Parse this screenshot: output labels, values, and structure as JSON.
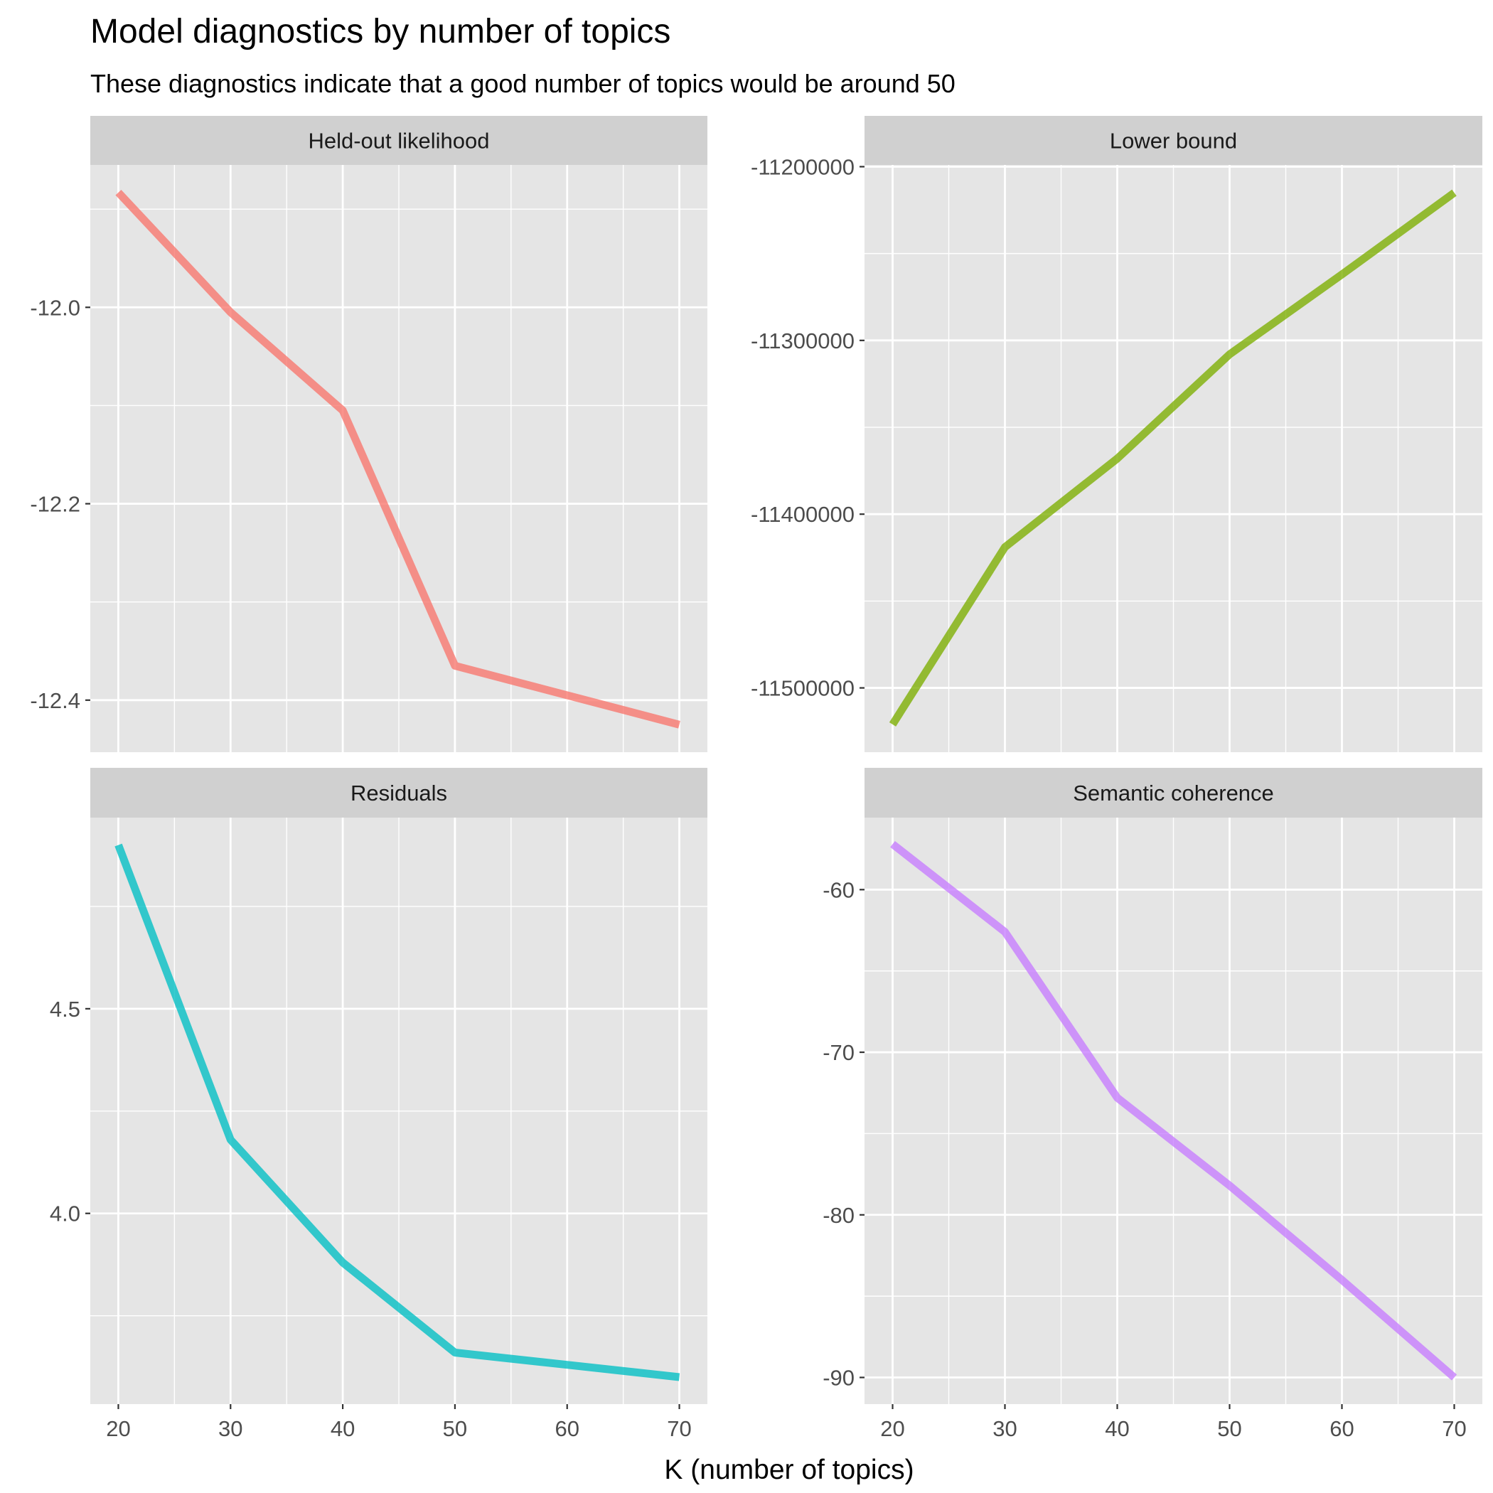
{
  "title": "Model diagnostics by number of topics",
  "subtitle": "These diagnostics indicate that a good number of topics would be around 50",
  "xlabel": "K (number of topics)",
  "ylabel": "",
  "panel_background": "#e5e5e5",
  "strip_background": "#d0d0d0",
  "gridline_color": "#ffffff",
  "chart_data": [
    {
      "type": "line",
      "panel": "Held-out likelihood",
      "color": "#F8766D",
      "x": [
        20,
        30,
        40,
        50,
        60,
        70
      ],
      "y": [
        -11.883,
        -12.005,
        -12.105,
        -12.365,
        -12.395,
        -12.425
      ],
      "xlim": [
        17.5,
        72.5
      ],
      "ylim": [
        -12.453,
        -11.855
      ],
      "x_ticks": [
        20,
        30,
        40,
        50,
        60,
        70
      ],
      "x_tick_labels": [
        "20",
        "30",
        "40",
        "50",
        "60",
        "70"
      ],
      "y_ticks": [
        -12.4,
        -12.2,
        -12.0
      ],
      "y_tick_labels": [
        "-12.4",
        "-12.2",
        "-12.0"
      ],
      "grid": true
    },
    {
      "type": "line",
      "panel": "Lower bound",
      "color": "#7CAE00",
      "x": [
        20,
        30,
        40,
        50,
        60,
        70
      ],
      "y": [
        -11521000,
        -11419000,
        -11368000,
        -11308000,
        -11262000,
        -11215000
      ],
      "xlim": [
        17.5,
        72.5
      ],
      "ylim": [
        -11537000,
        -11199000
      ],
      "x_ticks": [
        20,
        30,
        40,
        50,
        60,
        70
      ],
      "x_tick_labels": [
        "20",
        "30",
        "40",
        "50",
        "60",
        "70"
      ],
      "y_ticks": [
        -11500000,
        -11400000,
        -11300000,
        -11200000
      ],
      "y_tick_labels": [
        "-11500000",
        "-11400000",
        "-11300000",
        "-11200000"
      ],
      "grid": true
    },
    {
      "type": "line",
      "panel": "Residuals",
      "color": "#00BFC4",
      "x": [
        20,
        30,
        40,
        50,
        60,
        70
      ],
      "y": [
        4.9,
        4.18,
        3.88,
        3.66,
        3.63,
        3.6
      ],
      "xlim": [
        17.5,
        72.5
      ],
      "ylim": [
        3.534,
        4.967
      ],
      "x_ticks": [
        20,
        30,
        40,
        50,
        60,
        70
      ],
      "x_tick_labels": [
        "20",
        "30",
        "40",
        "50",
        "60",
        "70"
      ],
      "y_ticks": [
        4.0,
        4.5
      ],
      "y_tick_labels": [
        "4.0",
        "4.5"
      ],
      "grid": true
    },
    {
      "type": "line",
      "panel": "Semantic coherence",
      "color": "#C77CFF",
      "x": [
        20,
        30,
        40,
        50,
        60,
        70
      ],
      "y": [
        -57.2,
        -62.6,
        -72.8,
        -78.2,
        -84.0,
        -90.0
      ],
      "xlim": [
        17.5,
        72.5
      ],
      "ylim": [
        -91.64,
        -55.57
      ],
      "x_ticks": [
        20,
        30,
        40,
        50,
        60,
        70
      ],
      "x_tick_labels": [
        "20",
        "30",
        "40",
        "50",
        "60",
        "70"
      ],
      "y_ticks": [
        -90,
        -80,
        -70,
        -60
      ],
      "y_tick_labels": [
        "-90",
        "-80",
        "-70",
        "-60"
      ],
      "grid": true
    }
  ]
}
